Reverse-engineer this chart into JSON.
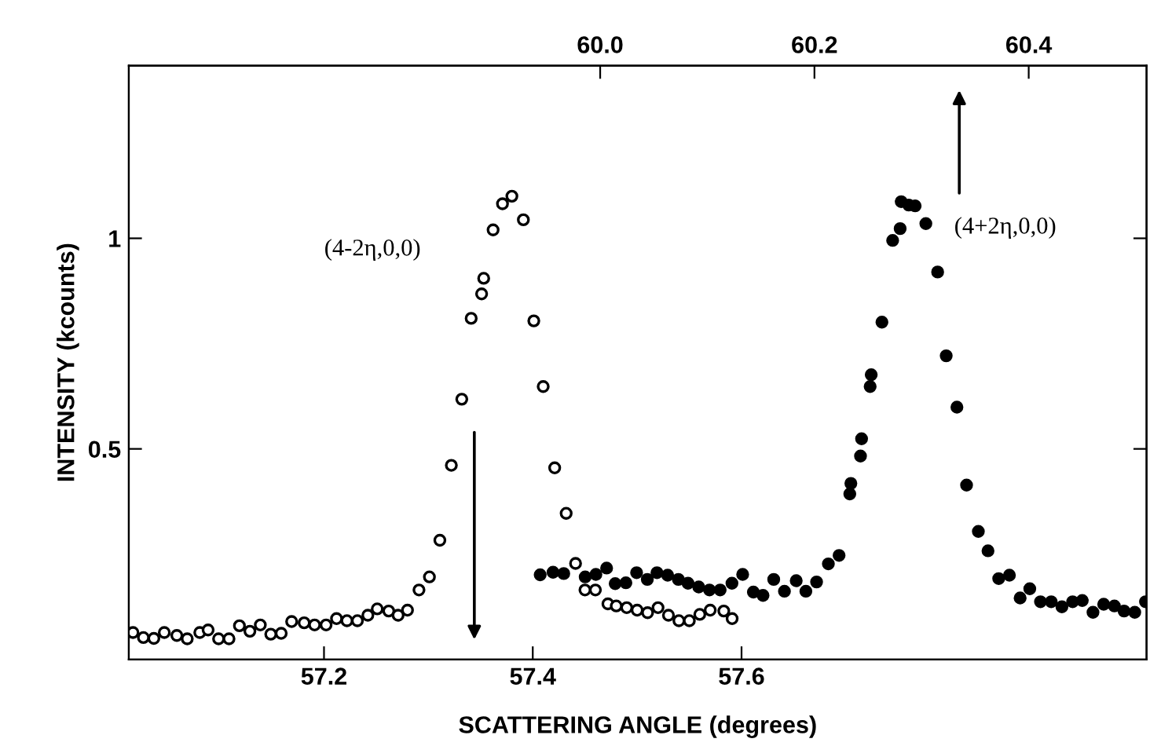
{
  "chart_data": {
    "type": "scatter",
    "xlabel": "SCATTERING ANGLE (degrees)",
    "ylabel": "INTENSITY (kcounts)",
    "xlim": [
      57.013,
      57.988
    ],
    "xticks": [
      57.2,
      57.4,
      57.6
    ],
    "x2lim": [
      59.56,
      60.51
    ],
    "x2ticks": [
      {
        "value": 60.0,
        "label": "60.0"
      },
      60.2,
      60.4
    ],
    "ylim": [
      0,
      1.41
    ],
    "yticks": [
      0.5,
      1
    ],
    "marker": "circle",
    "grid": false,
    "legend": false,
    "annotations": [
      "(4-2η,0,0)",
      "(4+2η,0,0)"
    ],
    "series": [
      {
        "color": "#000000",
        "x": [
          57.017,
          57.027,
          57.037,
          57.047,
          57.059,
          57.069,
          57.081,
          57.089,
          57.099,
          57.109,
          57.119,
          57.129,
          57.139,
          57.149,
          57.159,
          57.169,
          57.181,
          57.191,
          57.202,
          57.212,
          57.222,
          57.232,
          57.242,
          57.251,
          57.262,
          57.271,
          57.28,
          57.291,
          57.301,
          57.311,
          57.322,
          57.332,
          57.341,
          57.351,
          57.353,
          57.362,
          57.371,
          57.38,
          57.391,
          57.401,
          57.41,
          57.421,
          57.432,
          57.441,
          57.45,
          57.46,
          57.472,
          57.48,
          57.49,
          57.5,
          57.51,
          57.52,
          57.53,
          57.54,
          57.55,
          57.56,
          57.57,
          57.583,
          57.591
        ],
        "values": [
          0.064,
          0.052,
          0.05,
          0.064,
          0.057,
          0.049,
          0.064,
          0.07,
          0.049,
          0.049,
          0.08,
          0.067,
          0.082,
          0.06,
          0.062,
          0.09,
          0.087,
          0.082,
          0.082,
          0.097,
          0.092,
          0.092,
          0.105,
          0.12,
          0.115,
          0.105,
          0.117,
          0.165,
          0.196,
          0.283,
          0.461,
          0.618,
          0.81,
          0.868,
          0.905,
          1.02,
          1.082,
          1.1,
          1.044,
          0.804,
          0.648,
          0.455,
          0.347,
          0.228,
          0.165,
          0.165,
          0.132,
          0.127,
          0.123,
          0.117,
          0.111,
          0.123,
          0.105,
          0.092,
          0.092,
          0.107,
          0.117,
          0.115,
          0.097
        ]
      },
      {
        "color": "#000000",
        "axis": "x2",
        "x": [
          59.944,
          59.956,
          59.966,
          59.986,
          59.996,
          60.006,
          60.014,
          60.024,
          60.034,
          60.044,
          60.053,
          60.063,
          60.073,
          60.082,
          60.092,
          60.102,
          60.112,
          60.123,
          60.133,
          60.143,
          60.152,
          60.162,
          60.172,
          60.183,
          60.192,
          60.202,
          60.213,
          60.223,
          60.233,
          60.234,
          60.243,
          60.244,
          60.252,
          60.253,
          60.263,
          60.273,
          60.28,
          60.281,
          60.288,
          60.294,
          60.304,
          60.315,
          60.323,
          60.333,
          60.342,
          60.353,
          60.362,
          60.372,
          60.382,
          60.392,
          60.401,
          60.411,
          60.421,
          60.431,
          60.441,
          60.45,
          60.46,
          60.47,
          60.48,
          60.489,
          60.499,
          60.509
        ],
        "values": [
          0.201,
          0.207,
          0.204,
          0.196,
          0.202,
          0.217,
          0.18,
          0.182,
          0.206,
          0.19,
          0.206,
          0.2,
          0.19,
          0.181,
          0.172,
          0.165,
          0.165,
          0.181,
          0.202,
          0.16,
          0.152,
          0.19,
          0.162,
          0.187,
          0.162,
          0.184,
          0.227,
          0.247,
          0.393,
          0.418,
          0.483,
          0.524,
          0.648,
          0.676,
          0.801,
          0.995,
          1.023,
          1.087,
          1.079,
          1.077,
          1.035,
          0.92,
          0.721,
          0.599,
          0.414,
          0.304,
          0.258,
          0.192,
          0.2,
          0.146,
          0.168,
          0.137,
          0.137,
          0.125,
          0.137,
          0.14,
          0.112,
          0.131,
          0.127,
          0.115,
          0.112,
          0.137
        ]
      }
    ]
  }
}
